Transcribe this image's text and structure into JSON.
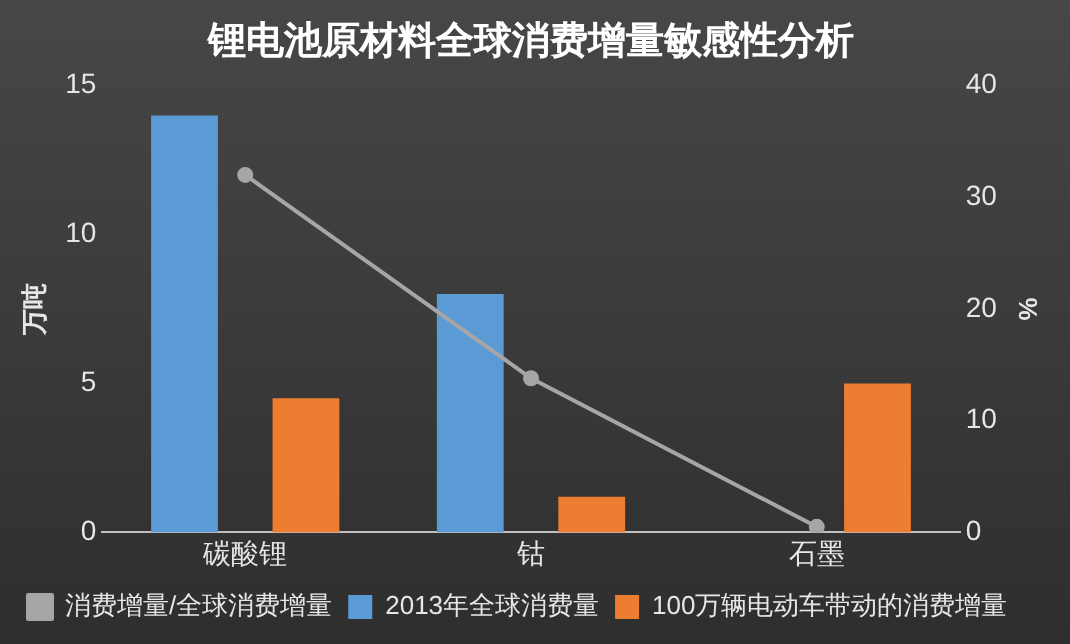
{
  "chart_data": {
    "type": "bar",
    "title": "锂电池原材料全球消费增量敏感性分析",
    "ylabel": "万吨",
    "y2label": "%",
    "categories": [
      "碳酸锂",
      "钴",
      "石墨"
    ],
    "series": [
      {
        "name": "2013年全球消费量",
        "color": "#5b9bd5",
        "values": [
          14,
          8,
          null
        ]
      },
      {
        "name": "100万辆电动车带动的消费增量",
        "color": "#ed7d31",
        "values": [
          4.5,
          1.2,
          5
        ]
      },
      {
        "name": "消费增量/全球消费增量",
        "type": "line",
        "axis": "y2",
        "color": "#a6a6a6",
        "values": [
          32,
          13.8,
          0.5
        ]
      }
    ],
    "ylim": [
      0,
      15
    ],
    "yticks": [
      0,
      5,
      10,
      15
    ],
    "y2lim": [
      0,
      40
    ],
    "y2ticks": [
      0,
      10,
      20,
      30,
      40
    ],
    "grid": false,
    "legend": "bottom",
    "marker": "circle"
  }
}
